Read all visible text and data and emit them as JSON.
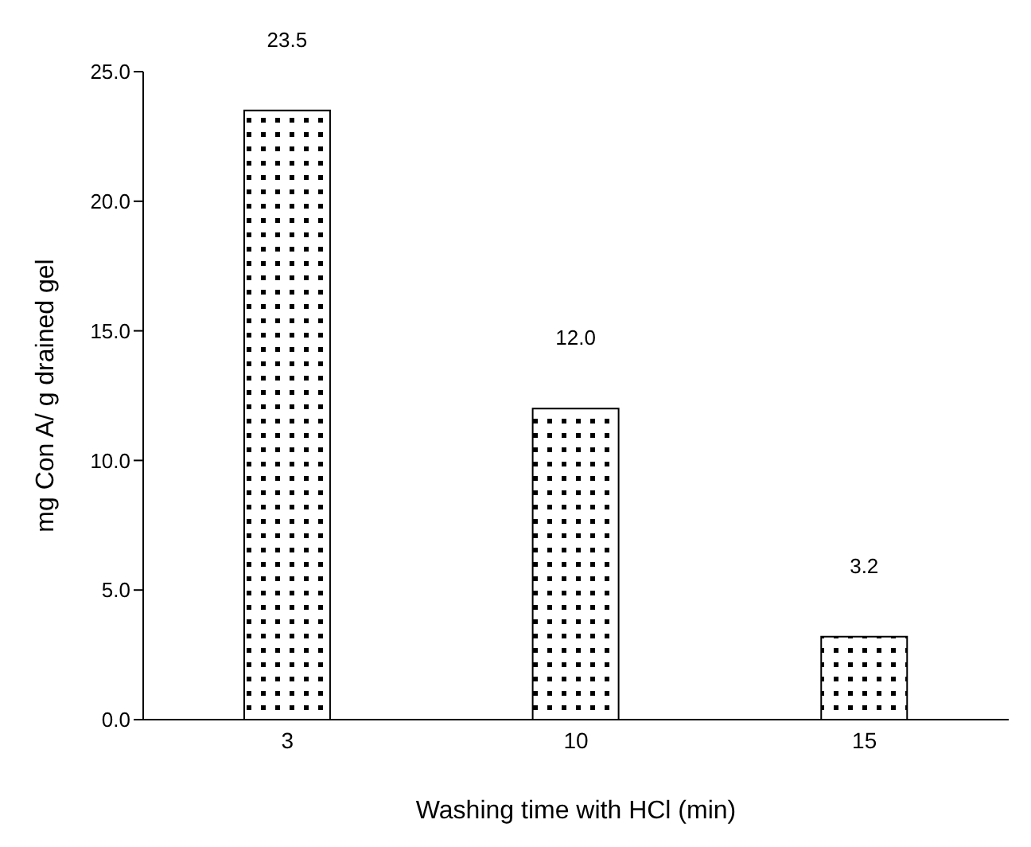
{
  "chart_data": {
    "type": "bar",
    "xlabel": "Washing time with HCl (min)",
    "ylabel": "mg Con A/ g drained gel",
    "categories": [
      "3",
      "10",
      "15"
    ],
    "values": [
      23.5,
      12.0,
      3.2
    ],
    "value_labels": [
      "23.5",
      "12.0",
      "3.2"
    ],
    "color": "#000000",
    "ylim": [
      0,
      25
    ],
    "yticks": [
      {
        "value": 0,
        "label": "0.0"
      },
      {
        "value": 5,
        "label": "5.0"
      },
      {
        "value": 10,
        "label": "10.0"
      },
      {
        "value": 15,
        "label": "15.0"
      },
      {
        "value": 20,
        "label": "20.0"
      },
      {
        "value": 25,
        "label": "25.0"
      }
    ],
    "grid": false,
    "legend": false
  }
}
